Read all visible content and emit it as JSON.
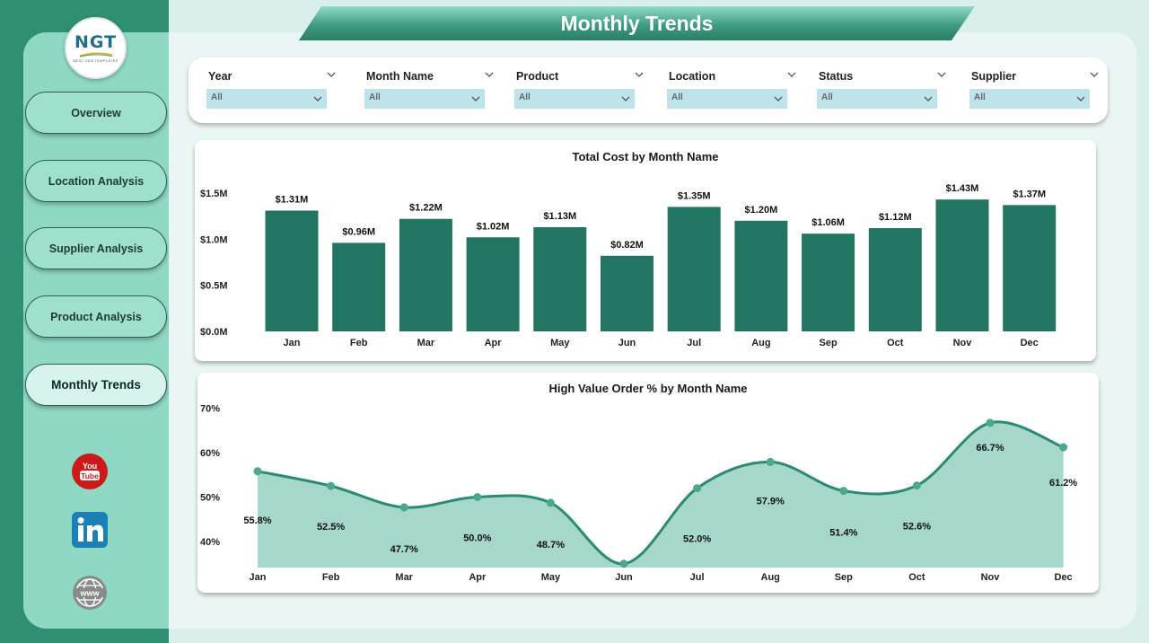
{
  "page": {
    "title": "Monthly Trends",
    "colors": {
      "strip": "#2f8f72",
      "sidebar": "#8fd8c3",
      "bar": "#217562",
      "line": "#2a8a74",
      "area": "#a5d7cb"
    }
  },
  "logo": {
    "text": "NGT",
    "subtitle": "NEXT GEN TEMPLATES"
  },
  "nav": [
    {
      "label": "Overview",
      "active": false
    },
    {
      "label": "Location Analysis",
      "active": false
    },
    {
      "label": "Supplier Analysis",
      "active": false
    },
    {
      "label": "Product Analysis",
      "active": false
    },
    {
      "label": "Monthly Trends",
      "active": true
    }
  ],
  "social": [
    {
      "icon": "youtube-icon",
      "text": "You Tube"
    },
    {
      "icon": "linkedin-icon",
      "text": "in"
    },
    {
      "icon": "globe-icon",
      "text": "www"
    }
  ],
  "filters": [
    {
      "label": "Year",
      "value": "All"
    },
    {
      "label": "Month Name",
      "value": "All"
    },
    {
      "label": "Product",
      "value": "All"
    },
    {
      "label": "Location",
      "value": "All"
    },
    {
      "label": "Status",
      "value": "All"
    },
    {
      "label": "Supplier",
      "value": "All"
    }
  ],
  "chart_data": [
    {
      "type": "bar",
      "title": "Total Cost by Month Name",
      "categories": [
        "Jan",
        "Feb",
        "Mar",
        "Apr",
        "May",
        "Jun",
        "Jul",
        "Aug",
        "Sep",
        "Oct",
        "Nov",
        "Dec"
      ],
      "values": [
        1.31,
        0.96,
        1.22,
        1.02,
        1.13,
        0.82,
        1.35,
        1.2,
        1.06,
        1.12,
        1.43,
        1.37
      ],
      "data_labels": [
        "$1.31M",
        "$0.96M",
        "$1.22M",
        "$1.02M",
        "$1.13M",
        "$0.82M",
        "$1.35M",
        "$1.20M",
        "$1.06M",
        "$1.12M",
        "$1.43M",
        "$1.37M"
      ],
      "ylim": [
        0,
        1.5
      ],
      "yticks": [
        0,
        0.5,
        1.0,
        1.5
      ],
      "ytick_labels": [
        "$0.0M",
        "$0.5M",
        "$1.0M",
        "$1.5M"
      ],
      "xlabel": "",
      "ylabel": "",
      "grid": false
    },
    {
      "type": "area",
      "title": "High Value Order % by Month Name",
      "categories": [
        "Jan",
        "Feb",
        "Mar",
        "Apr",
        "May",
        "Jun",
        "Jul",
        "Aug",
        "Sep",
        "Oct",
        "Nov",
        "Dec"
      ],
      "values": [
        55.8,
        52.5,
        47.7,
        50.0,
        48.7,
        35.0,
        52.0,
        57.9,
        51.4,
        52.6,
        66.7,
        61.2
      ],
      "data_labels": [
        "55.8%",
        "52.5%",
        "47.7%",
        "50.0%",
        "48.7%",
        "",
        "52.0%",
        "57.9%",
        "51.4%",
        "52.6%",
        "66.7%",
        "61.2%"
      ],
      "ylim": [
        34,
        72
      ],
      "yticks": [
        40,
        50,
        60,
        70
      ],
      "ytick_labels": [
        "40%",
        "50%",
        "60%",
        "70%"
      ],
      "xlabel": "",
      "ylabel": "",
      "grid": false
    }
  ]
}
